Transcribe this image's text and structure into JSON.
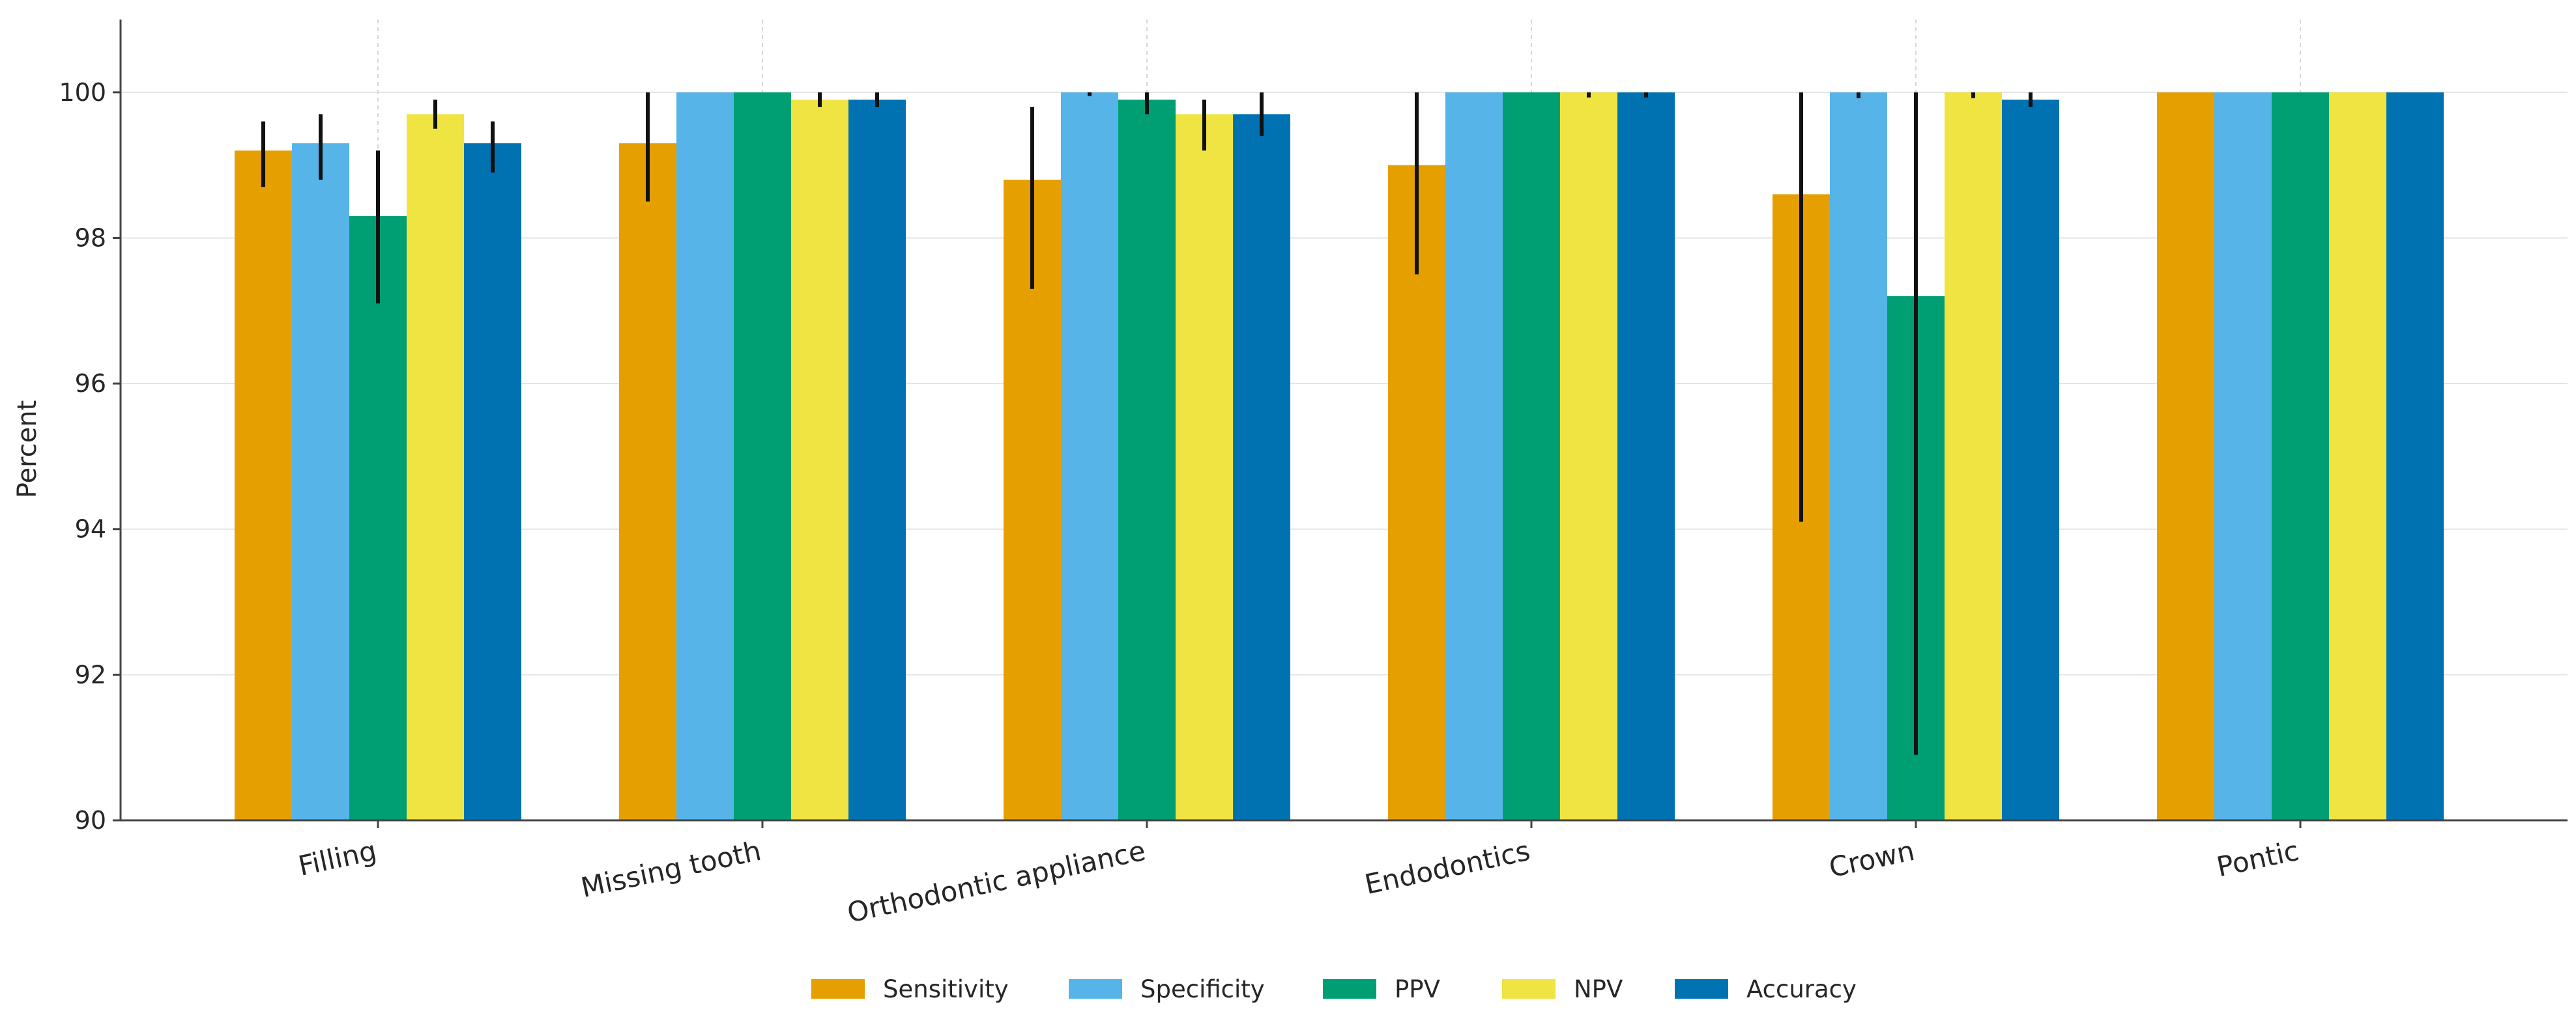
{
  "chart_data": {
    "type": "bar",
    "title": "",
    "xlabel": "",
    "ylabel": "Percent",
    "ylim": [
      90,
      101
    ],
    "yticks": [
      90,
      92,
      94,
      96,
      98,
      100
    ],
    "grid": true,
    "legend_position": "bottom-center",
    "categories": [
      "Filling",
      "Missing tooth",
      "Orthodontic appliance",
      "Endodontics",
      "Crown",
      "Pontic"
    ],
    "series": [
      {
        "name": "Sensitivity",
        "color": "#E69F00",
        "values": [
          99.2,
          99.3,
          98.8,
          99.0,
          98.6,
          100.0
        ],
        "ci_low": [
          98.7,
          98.5,
          97.3,
          97.5,
          94.1,
          100.0
        ],
        "ci_high": [
          99.6,
          100.0,
          99.8,
          100.0,
          100.0,
          100.0
        ]
      },
      {
        "name": "Specificity",
        "color": "#56B4E9",
        "values": [
          99.3,
          100.0,
          100.0,
          100.0,
          100.0,
          100.0
        ],
        "ci_low": [
          98.8,
          100.0,
          99.95,
          100.0,
          99.92,
          100.0
        ],
        "ci_high": [
          99.7,
          100.0,
          100.0,
          100.0,
          100.0,
          100.0
        ]
      },
      {
        "name": "PPV",
        "color": "#009E73",
        "values": [
          98.3,
          100.0,
          99.9,
          100.0,
          97.2,
          100.0
        ],
        "ci_low": [
          97.1,
          100.0,
          99.7,
          100.0,
          90.9,
          100.0
        ],
        "ci_high": [
          99.2,
          100.0,
          100.0,
          100.0,
          100.0,
          100.0
        ]
      },
      {
        "name": "NPV",
        "color": "#F0E442",
        "values": [
          99.7,
          99.9,
          99.7,
          100.0,
          100.0,
          100.0
        ],
        "ci_low": [
          99.5,
          99.8,
          99.2,
          99.93,
          99.92,
          100.0
        ],
        "ci_high": [
          99.9,
          100.0,
          99.9,
          100.0,
          100.0,
          100.0
        ]
      },
      {
        "name": "Accuracy",
        "color": "#0072B2",
        "values": [
          99.3,
          99.9,
          99.7,
          100.0,
          99.9,
          100.0
        ],
        "ci_low": [
          98.9,
          99.8,
          99.4,
          99.93,
          99.8,
          100.0
        ],
        "ci_high": [
          99.6,
          100.0,
          100.0,
          100.0,
          100.0,
          100.0
        ]
      }
    ]
  }
}
